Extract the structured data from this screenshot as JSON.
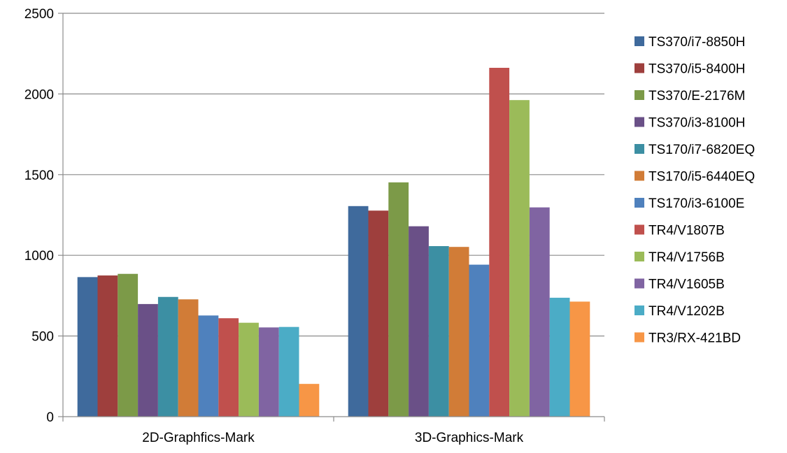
{
  "chart_data": {
    "type": "bar",
    "categories": [
      "2D-Graphfics-Mark",
      "3D-Graphics-Mark"
    ],
    "ylim": [
      0,
      2500
    ],
    "yticks": [
      0,
      500,
      1000,
      1500,
      2000,
      2500
    ],
    "grid": true,
    "legend_position": "right",
    "series": [
      {
        "name": "TS370/i7-8850H",
        "color": "#3F6A9C",
        "values": [
          865,
          1305
        ]
      },
      {
        "name": "TS370/i5-8400H",
        "color": "#9E3F3D",
        "values": [
          875,
          1277
        ]
      },
      {
        "name": "TS370/E-2176M",
        "color": "#7C9A48",
        "values": [
          885,
          1452
        ]
      },
      {
        "name": "TS370/i3-8100H",
        "color": "#6A5087",
        "values": [
          698,
          1180
        ]
      },
      {
        "name": "TS170/i7-6820EQ",
        "color": "#3C8FA3",
        "values": [
          742,
          1057
        ]
      },
      {
        "name": "TS170/i5-6440EQ",
        "color": "#D17C37",
        "values": [
          727,
          1052
        ]
      },
      {
        "name": "TS170/i3-6100E",
        "color": "#4F81BD",
        "values": [
          627,
          942
        ]
      },
      {
        "name": "TR4/V1807B",
        "color": "#C0504D",
        "values": [
          610,
          2162
        ]
      },
      {
        "name": "TR4/V1756B",
        "color": "#9BBB59",
        "values": [
          582,
          1962
        ]
      },
      {
        "name": "TR4/V1605B",
        "color": "#8064A2",
        "values": [
          553,
          1297
        ]
      },
      {
        "name": "TR4/V1202B",
        "color": "#4BACC6",
        "values": [
          556,
          737
        ]
      },
      {
        "name": "TR3/RX-421BD",
        "color": "#F79646",
        "values": [
          203,
          713
        ]
      }
    ]
  }
}
